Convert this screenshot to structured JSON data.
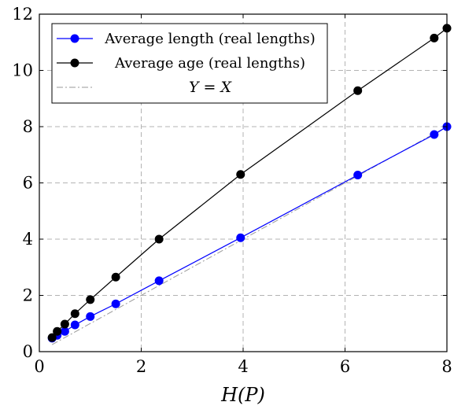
{
  "chart_data": {
    "type": "line",
    "title": "",
    "xlabel": "H(P)",
    "ylabel": "",
    "xlim": [
      0,
      8
    ],
    "ylim": [
      0,
      12
    ],
    "xticks": [
      0,
      2,
      4,
      6,
      8
    ],
    "yticks": [
      0,
      2,
      4,
      6,
      8,
      10,
      12
    ],
    "grid": true,
    "legend_position": "top-left",
    "series": [
      {
        "name": "Average length (real lengths)",
        "color": "#0000ff",
        "marker": "circle",
        "line_style": "solid",
        "x": [
          0.25,
          0.35,
          0.5,
          0.7,
          1.0,
          1.5,
          2.35,
          3.95,
          6.25,
          7.75,
          8.0
        ],
        "y": [
          0.48,
          0.58,
          0.72,
          0.95,
          1.25,
          1.7,
          2.52,
          4.05,
          6.28,
          7.72,
          8.0
        ]
      },
      {
        "name": "Average age (real lengths)",
        "color": "#000000",
        "marker": "circle",
        "line_style": "solid",
        "x": [
          0.25,
          0.35,
          0.5,
          0.7,
          1.0,
          1.5,
          2.35,
          3.95,
          6.25,
          7.75,
          8.0
        ],
        "y": [
          0.5,
          0.72,
          0.98,
          1.35,
          1.85,
          2.65,
          4.0,
          6.3,
          9.28,
          11.15,
          11.5
        ]
      },
      {
        "name": "Y = X",
        "color": "#9a9a9a",
        "marker": "none",
        "line_style": "dash-dot",
        "x": [
          0.25,
          8.0
        ],
        "y": [
          0.25,
          8.0
        ]
      }
    ]
  }
}
